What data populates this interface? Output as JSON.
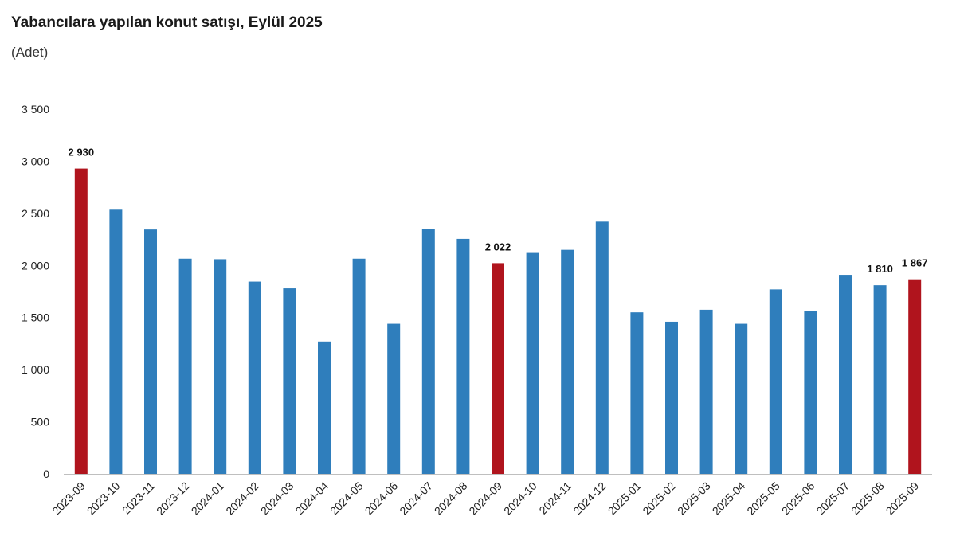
{
  "header": {
    "title": "Yabancılara yapılan konut satışı, Eylül 2025",
    "subtitle": "(Adet)"
  },
  "colors": {
    "bar_default": "#2F7EBC",
    "bar_highlight": "#B0141D",
    "axis": "#BFBFBF"
  },
  "chart_data": {
    "type": "bar",
    "title": "Yabancılara yapılan konut satışı, Eylül 2025",
    "subtitle": "(Adet)",
    "ylim": [
      0,
      3500
    ],
    "y_ticks": [
      0,
      500,
      1000,
      1500,
      2000,
      2500,
      3000,
      3500
    ],
    "y_tick_labels": [
      "0",
      "500",
      "1 000",
      "1 500",
      "2 000",
      "2 500",
      "3 000",
      "3 500"
    ],
    "grid": false,
    "legend": "none",
    "categories": [
      "2023-09",
      "2023-10",
      "2023-11",
      "2023-12",
      "2024-01",
      "2024-02",
      "2024-03",
      "2024-04",
      "2024-05",
      "2024-06",
      "2024-07",
      "2024-08",
      "2024-09",
      "2024-10",
      "2024-11",
      "2024-12",
      "2025-01",
      "2025-02",
      "2025-03",
      "2025-04",
      "2025-05",
      "2025-06",
      "2025-07",
      "2025-08",
      "2025-09"
    ],
    "values": [
      2930,
      2535,
      2345,
      2065,
      2060,
      1845,
      1780,
      1270,
      2065,
      1440,
      2350,
      2255,
      2022,
      2120,
      2150,
      2420,
      1550,
      1460,
      1575,
      1440,
      1770,
      1565,
      1910,
      1810,
      1867
    ],
    "highlighted": [
      "2023-09",
      "2024-09",
      "2025-09"
    ],
    "data_labels": [
      {
        "category": "2023-09",
        "text": "2 930"
      },
      {
        "category": "2024-09",
        "text": "2 022"
      },
      {
        "category": "2025-08",
        "text": "1 810"
      },
      {
        "category": "2025-09",
        "text": "1 867"
      }
    ]
  }
}
